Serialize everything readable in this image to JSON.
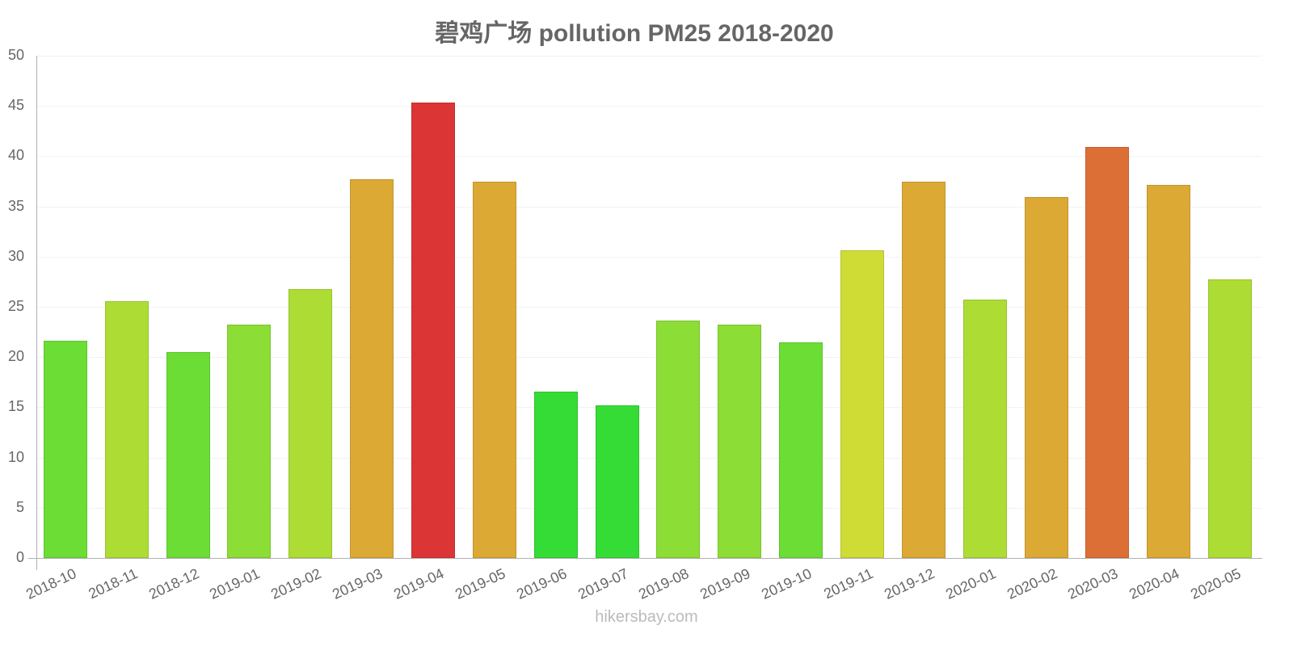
{
  "chart_data": {
    "type": "bar",
    "title": "碧鸡广场 pollution PM25 2018-2020",
    "xlabel": "",
    "ylabel": "",
    "ylim": [
      0,
      50
    ],
    "yticks": [
      0,
      5,
      10,
      15,
      20,
      25,
      30,
      35,
      40,
      45,
      50
    ],
    "grid": true,
    "legend": null,
    "categories": [
      "2018-10",
      "2018-11",
      "2018-12",
      "2019-01",
      "2019-02",
      "2019-03",
      "2019-04",
      "2019-05",
      "2019-06",
      "2019-07",
      "2019-08",
      "2019-09",
      "2019-10",
      "2019-11",
      "2019-12",
      "2020-01",
      "2020-02",
      "2020-03",
      "2020-04",
      "2020-05"
    ],
    "values": [
      21.6,
      25.6,
      20.5,
      23.2,
      26.8,
      37.7,
      45.3,
      37.5,
      16.6,
      15.2,
      23.6,
      23.2,
      21.5,
      30.6,
      37.5,
      25.7,
      35.9,
      40.9,
      37.1,
      27.7
    ],
    "colors": [
      "#6bdd35",
      "#addd35",
      "#6bdd35",
      "#8cdd35",
      "#addd35",
      "#dca935",
      "#dc3535",
      "#dca935",
      "#35dc35",
      "#35dc35",
      "#8cdd35",
      "#8cdd35",
      "#6bdd35",
      "#cfdc35",
      "#dca935",
      "#addd35",
      "#dca935",
      "#dc6f35",
      "#dca935",
      "#addd35"
    ]
  },
  "footer": {
    "watermark": "hikersbay.com"
  }
}
